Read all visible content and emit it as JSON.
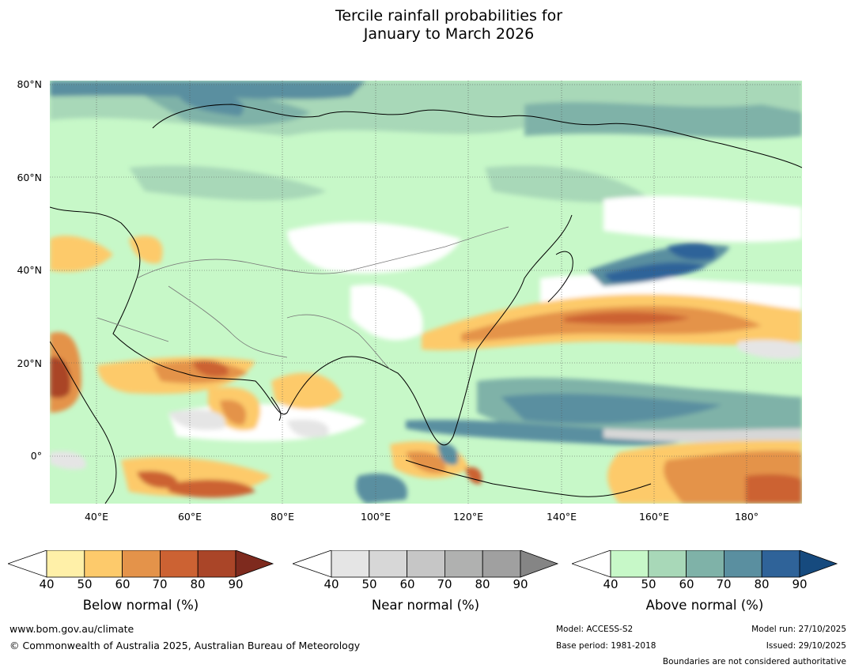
{
  "title": {
    "line1": "Tercile rainfall probabilities for",
    "line2": "January to March 2026"
  },
  "axes": {
    "lat_labels": [
      "80°N",
      "60°N",
      "40°N",
      "20°N",
      "0°"
    ],
    "lon_labels": [
      "40°E",
      "60°E",
      "80°E",
      "100°E",
      "120°E",
      "140°E",
      "160°E",
      "180°"
    ]
  },
  "colorbars": [
    {
      "name": "below",
      "label": "Below normal (%)",
      "ticks": [
        "40",
        "50",
        "60",
        "70",
        "80",
        "90"
      ],
      "colors": [
        "#fff0a8",
        "#fdca6b",
        "#e4934a",
        "#cc6233",
        "#aa4528",
        "#7e2a1e"
      ]
    },
    {
      "name": "near",
      "label": "Near normal (%)",
      "ticks": [
        "40",
        "50",
        "60",
        "70",
        "80",
        "90"
      ],
      "colors": [
        "#e5e5e5",
        "#d7d7d7",
        "#c6c6c6",
        "#b0b1b0",
        "#a0a0a0",
        "#858585"
      ]
    },
    {
      "name": "above",
      "label": "Above normal (%)",
      "ticks": [
        "40",
        "50",
        "60",
        "70",
        "80",
        "90"
      ],
      "colors": [
        "#c7f8c8",
        "#a8d8b8",
        "#7fb2a8",
        "#5a8fa0",
        "#2f6399",
        "#164a7e"
      ]
    }
  ],
  "footer": {
    "website": "www.bom.gov.au/climate",
    "copyright": "© Commonwealth of Australia 2025, Australian Bureau of Meteorology",
    "model": "Model: ACCESS-S2",
    "base_period": "Base period: 1981-2018",
    "model_run": "Model run: 27/10/2025",
    "issued": "Issued: 29/10/2025",
    "boundaries": "Boundaries are not considered authoritative"
  }
}
